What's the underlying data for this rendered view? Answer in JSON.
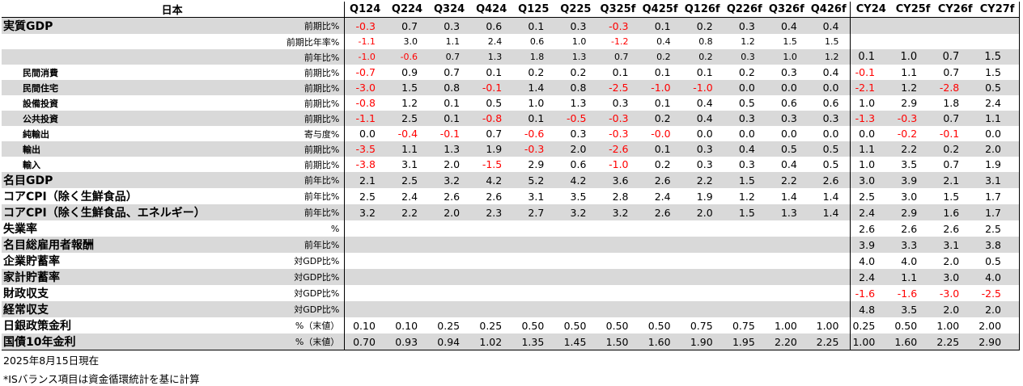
{
  "header": {
    "country": "日本",
    "quarters": [
      "Q124",
      "Q224",
      "Q324",
      "Q424",
      "Q125",
      "Q225",
      "Q325f",
      "Q425f",
      "Q126f",
      "Q226f",
      "Q326f",
      "Q426f"
    ],
    "years": [
      "CY24",
      "CY25f",
      "CY26f",
      "CY27f"
    ]
  },
  "rows": [
    {
      "label": "実質GDP",
      "unit": "前期比%",
      "style": "top",
      "shade": true,
      "q": [
        "-0.3",
        "0.7",
        "0.3",
        "0.6",
        "0.1",
        "0.3",
        "-0.3",
        "0.1",
        "0.2",
        "0.3",
        "0.4",
        "0.4"
      ],
      "y": [
        "",
        "",
        "",
        ""
      ]
    },
    {
      "label": "",
      "unit": "前期比年率%",
      "style": "small",
      "shade": false,
      "q": [
        "-1.1",
        "3.0",
        "1.1",
        "2.4",
        "0.6",
        "1.0",
        "-1.2",
        "0.4",
        "0.8",
        "1.2",
        "1.5",
        "1.5"
      ],
      "y": [
        "",
        "",
        "",
        ""
      ]
    },
    {
      "label": "",
      "unit": "前年比%",
      "style": "small",
      "shade": true,
      "q": [
        "-1.0",
        "-0.6",
        "0.7",
        "1.3",
        "1.8",
        "1.3",
        "0.7",
        "0.2",
        "0.2",
        "0.3",
        "1.0",
        "1.2"
      ],
      "y": [
        "0.1",
        "1.0",
        "0.7",
        "1.5"
      ],
      "ybig": true
    },
    {
      "label": "民間消費",
      "unit": "前期比%",
      "style": "sub",
      "shade": false,
      "q": [
        "-0.7",
        "0.9",
        "0.7",
        "0.1",
        "0.2",
        "0.2",
        "0.1",
        "0.1",
        "0.1",
        "0.2",
        "0.3",
        "0.4"
      ],
      "y": [
        "-0.1",
        "1.1",
        "0.7",
        "1.5"
      ]
    },
    {
      "label": "民間住宅",
      "unit": "前期比%",
      "style": "sub",
      "shade": true,
      "q": [
        "-3.0",
        "1.5",
        "0.8",
        "-0.1",
        "1.4",
        "0.8",
        "-2.5",
        "-1.0",
        "-1.0",
        "0.0",
        "0.0",
        "0.0"
      ],
      "y": [
        "-2.1",
        "1.2",
        "-2.8",
        "0.5"
      ]
    },
    {
      "label": "設備投資",
      "unit": "前期比%",
      "style": "sub",
      "shade": false,
      "q": [
        "-0.8",
        "1.2",
        "0.1",
        "0.5",
        "1.0",
        "1.3",
        "0.3",
        "0.1",
        "0.4",
        "0.5",
        "0.6",
        "0.6"
      ],
      "y": [
        "1.0",
        "2.9",
        "1.8",
        "2.4"
      ]
    },
    {
      "label": "公共投資",
      "unit": "前期比%",
      "style": "sub",
      "shade": true,
      "q": [
        "-1.1",
        "2.5",
        "0.1",
        "-0.8",
        "0.1",
        "-0.5",
        "-0.3",
        "0.2",
        "0.4",
        "0.3",
        "0.3",
        "0.3"
      ],
      "y": [
        "-1.3",
        "-0.3",
        "0.7",
        "1.1"
      ]
    },
    {
      "label": "純輸出",
      "unit": "寄与度%",
      "style": "sub",
      "shade": false,
      "q": [
        "0.0",
        "-0.4",
        "-0.1",
        "0.7",
        "-0.6",
        "0.3",
        "-0.3",
        "-0.0",
        "0.0",
        "0.0",
        "0.0",
        "0.0"
      ],
      "y": [
        "0.0",
        "-0.2",
        "-0.1",
        "0.0"
      ]
    },
    {
      "label": "輸出",
      "unit": "前期比%",
      "style": "sub",
      "shade": true,
      "q": [
        "-3.5",
        "1.1",
        "1.3",
        "1.9",
        "-0.3",
        "2.0",
        "-2.6",
        "0.1",
        "0.3",
        "0.4",
        "0.5",
        "0.5"
      ],
      "y": [
        "1.1",
        "2.2",
        "0.2",
        "2.0"
      ]
    },
    {
      "label": "輸入",
      "unit": "前期比%",
      "style": "sub",
      "shade": false,
      "q": [
        "-3.8",
        "3.1",
        "2.0",
        "-1.5",
        "2.9",
        "0.6",
        "-1.0",
        "0.2",
        "0.3",
        "0.3",
        "0.4",
        "0.5"
      ],
      "y": [
        "1.0",
        "3.5",
        "0.7",
        "1.9"
      ]
    },
    {
      "label": "名目GDP",
      "unit": "前年比%",
      "style": "top",
      "shade": true,
      "q": [
        "2.1",
        "2.5",
        "3.2",
        "4.2",
        "5.2",
        "4.2",
        "3.6",
        "2.6",
        "2.2",
        "1.5",
        "2.2",
        "2.6"
      ],
      "y": [
        "3.0",
        "3.9",
        "2.1",
        "3.1"
      ]
    },
    {
      "label": "コアCPI（除く生鮮食品）",
      "unit": "前年比%",
      "style": "top",
      "shade": false,
      "q": [
        "2.5",
        "2.4",
        "2.6",
        "2.6",
        "3.1",
        "3.5",
        "2.8",
        "2.4",
        "1.9",
        "1.2",
        "1.4",
        "1.4"
      ],
      "y": [
        "2.5",
        "3.0",
        "1.5",
        "1.7"
      ]
    },
    {
      "label": "コアCPI（除く生鮮食品、エネルギー）",
      "unit": "前年比%",
      "style": "top",
      "shade": true,
      "q": [
        "3.2",
        "2.2",
        "2.0",
        "2.3",
        "2.7",
        "3.2",
        "3.2",
        "2.6",
        "2.0",
        "1.5",
        "1.3",
        "1.4"
      ],
      "y": [
        "2.4",
        "2.9",
        "1.6",
        "1.7"
      ]
    },
    {
      "label": "失業率",
      "unit": "%",
      "style": "top",
      "shade": false,
      "q": [
        "",
        "",
        "",
        "",
        "",
        "",
        "",
        "",
        "",
        "",
        "",
        ""
      ],
      "y": [
        "2.6",
        "2.6",
        "2.6",
        "2.5"
      ]
    },
    {
      "label": "名目総雇用者報酬",
      "unit": "前年比%",
      "style": "top",
      "shade": true,
      "q": [
        "",
        "",
        "",
        "",
        "",
        "",
        "",
        "",
        "",
        "",
        "",
        ""
      ],
      "y": [
        "3.9",
        "3.3",
        "3.1",
        "3.8"
      ]
    },
    {
      "label": "企業貯蓄率",
      "unit": "対GDP比%",
      "style": "top",
      "shade": false,
      "q": [
        "",
        "",
        "",
        "",
        "",
        "",
        "",
        "",
        "",
        "",
        "",
        ""
      ],
      "y": [
        "4.0",
        "4.0",
        "2.0",
        "0.5"
      ]
    },
    {
      "label": "家計貯蓄率",
      "unit": "対GDP比%",
      "style": "top",
      "shade": true,
      "q": [
        "",
        "",
        "",
        "",
        "",
        "",
        "",
        "",
        "",
        "",
        "",
        ""
      ],
      "y": [
        "2.4",
        "1.1",
        "3.0",
        "4.0"
      ]
    },
    {
      "label": "財政収支",
      "unit": "対GDP比%",
      "style": "top",
      "shade": false,
      "q": [
        "",
        "",
        "",
        "",
        "",
        "",
        "",
        "",
        "",
        "",
        "",
        ""
      ],
      "y": [
        "-1.6",
        "-1.6",
        "-3.0",
        "-2.5"
      ]
    },
    {
      "label": "経常収支",
      "unit": "対GDP比%",
      "style": "top",
      "shade": true,
      "q": [
        "",
        "",
        "",
        "",
        "",
        "",
        "",
        "",
        "",
        "",
        "",
        ""
      ],
      "y": [
        "4.8",
        "3.5",
        "2.0",
        "2.0"
      ]
    },
    {
      "label": "日銀政策金利",
      "unit": "%（末値）",
      "style": "top",
      "shade": false,
      "q": [
        "0.10",
        "0.10",
        "0.25",
        "0.25",
        "0.50",
        "0.50",
        "0.50",
        "0.50",
        "0.75",
        "0.75",
        "1.00",
        "1.00"
      ],
      "y": [
        "0.25",
        "0.50",
        "1.00",
        "2.00"
      ]
    },
    {
      "label": "国債10年金利",
      "unit": "%（末値）",
      "style": "top",
      "shade": true,
      "q": [
        "0.70",
        "0.93",
        "0.94",
        "1.02",
        "1.35",
        "1.45",
        "1.50",
        "1.60",
        "1.90",
        "1.95",
        "2.20",
        "2.25"
      ],
      "y": [
        "1.00",
        "1.60",
        "2.25",
        "2.90"
      ]
    }
  ],
  "notes": {
    "date": "2025年8月15日現在",
    "footnote": "*ISバランス項目は資金循環統計を基に計算"
  },
  "colors": {
    "negative": "#ff0000",
    "shade": "#d9d9d9"
  }
}
